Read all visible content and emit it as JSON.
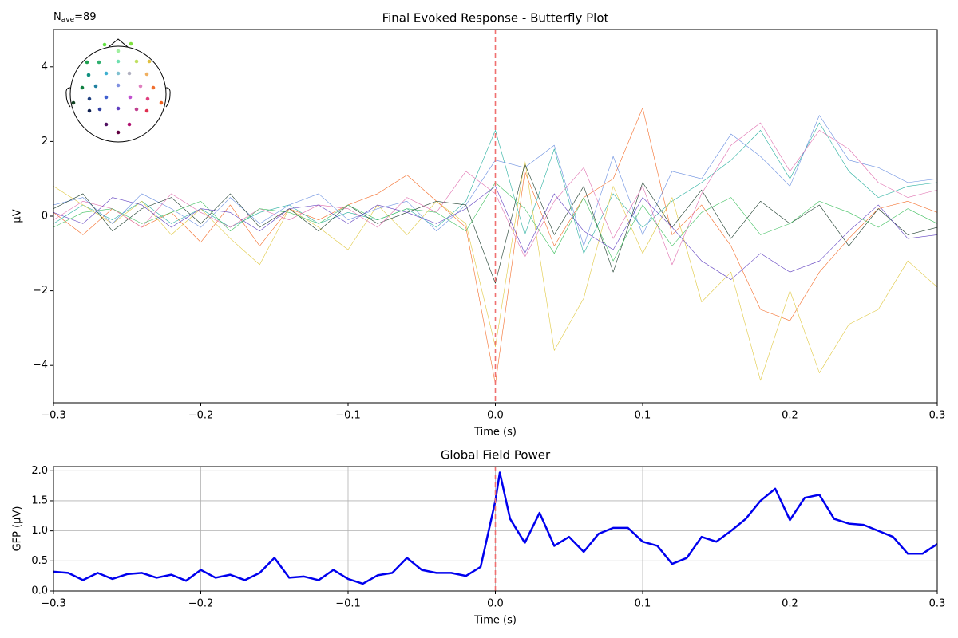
{
  "chart_data": [
    {
      "type": "butterfly",
      "title": "Final Evoked Response - Butterfly Plot",
      "nave": {
        "prefix": "N",
        "sub": "ave",
        "suffix": "=89"
      },
      "x_label": "Time (s)",
      "y_label": "µV",
      "xlim": [
        -0.3,
        0.3
      ],
      "ylim": [
        -5,
        5
      ],
      "xticks": [
        {
          "value": -0.3,
          "label": "−0.3"
        },
        {
          "value": -0.2,
          "label": "−0.2"
        },
        {
          "value": -0.1,
          "label": "−0.1"
        },
        {
          "value": 0,
          "label": "0.0"
        },
        0.1,
        0.2,
        0.3
      ],
      "yticks": [
        {
          "value": -4,
          "label": "−4"
        },
        {
          "value": -2,
          "label": "−2"
        },
        0,
        2,
        4
      ],
      "grid": false,
      "vline": 0,
      "x": [
        -0.3,
        -0.28,
        -0.26,
        -0.24,
        -0.22,
        -0.2,
        -0.18,
        -0.16,
        -0.14,
        -0.12,
        -0.1,
        -0.08,
        -0.06,
        -0.04,
        -0.02,
        0,
        0.02,
        0.04,
        0.06,
        0.08,
        0.1,
        0.12,
        0.14,
        0.16,
        0.18,
        0.2,
        0.22,
        0.24,
        0.26,
        0.28,
        0.3
      ],
      "series": [
        {
          "color": "#f46d2a",
          "values": [
            0.1,
            -0.5,
            0.2,
            -0.3,
            0.1,
            -0.7,
            0.3,
            -0.8,
            0.2,
            -0.1,
            0.3,
            0.6,
            1.1,
            0.4,
            -0.3,
            -4.5,
            1.2,
            -0.8,
            0.5,
            1.0,
            2.9,
            -0.5,
            0.3,
            -0.8,
            -2.5,
            -2.8,
            -1.5,
            -0.6,
            0.2,
            0.4,
            0.1
          ]
        },
        {
          "color": "#2ab0a0",
          "values": [
            -0.2,
            0.3,
            -0.1,
            0.4,
            -0.2,
            0.2,
            -0.3,
            0.1,
            0.3,
            -0.2,
            0.1,
            -0.1,
            0.2,
            -0.3,
            0.4,
            2.3,
            -0.5,
            1.8,
            -1.0,
            0.6,
            -0.3,
            0.4,
            0.9,
            1.5,
            2.3,
            1.0,
            2.5,
            1.2,
            0.5,
            0.8,
            0.9
          ]
        },
        {
          "color": "#e0c840",
          "values": [
            0.8,
            0.3,
            -0.2,
            0.4,
            -0.5,
            0.2,
            -0.6,
            -1.3,
            0.2,
            -0.3,
            -0.9,
            0.3,
            -0.5,
            0.4,
            -0.2,
            -3.5,
            1.5,
            -3.6,
            -2.2,
            0.8,
            -1.0,
            0.5,
            -2.3,
            -1.5,
            -4.4,
            -2.0,
            -4.2,
            -2.9,
            -2.5,
            -1.2,
            -1.9
          ]
        },
        {
          "color": "#6a8fe0",
          "values": [
            0.3,
            0.5,
            -0.2,
            0.6,
            0.2,
            -0.3,
            0.5,
            -0.2,
            0.3,
            0.6,
            -0.1,
            0.2,
            0.4,
            -0.4,
            0.3,
            1.5,
            1.3,
            1.9,
            -0.8,
            1.6,
            -0.5,
            1.2,
            1.0,
            2.2,
            1.6,
            0.8,
            2.7,
            1.5,
            1.3,
            0.9,
            1.0
          ]
        },
        {
          "color": "#1a3a2a",
          "values": [
            0.2,
            0.6,
            -0.4,
            0.2,
            0.5,
            -0.2,
            0.6,
            -0.3,
            0.2,
            -0.4,
            0.3,
            -0.2,
            0.1,
            0.4,
            0.3,
            -1.8,
            1.4,
            -0.5,
            0.8,
            -1.5,
            0.9,
            -0.3,
            0.7,
            -0.6,
            0.4,
            -0.2,
            0.3,
            -0.8,
            0.2,
            -0.5,
            -0.3
          ]
        },
        {
          "color": "#e070b0",
          "values": [
            -0.1,
            0.4,
            0.2,
            -0.3,
            0.6,
            0.1,
            -0.3,
            0.2,
            -0.1,
            0.3,
            0.2,
            -0.3,
            0.5,
            0.1,
            1.2,
            0.6,
            -1.1,
            0.4,
            1.3,
            -0.6,
            0.8,
            -1.3,
            0.6,
            1.9,
            2.5,
            1.2,
            2.3,
            1.8,
            0.9,
            0.5,
            0.7
          ]
        },
        {
          "color": "#40c060",
          "values": [
            -0.3,
            0.1,
            0.2,
            -0.2,
            0.1,
            0.4,
            -0.4,
            0.2,
            0.1,
            -0.2,
            0.3,
            -0.1,
            0.2,
            0.1,
            -0.4,
            0.9,
            0.2,
            -1.0,
            0.5,
            -1.2,
            0.3,
            -0.8,
            0.1,
            0.5,
            -0.5,
            -0.2,
            0.4,
            0.1,
            -0.3,
            0.2,
            -0.2
          ]
        },
        {
          "color": "#6040c0",
          "values": [
            0.1,
            -0.2,
            0.5,
            0.3,
            -0.3,
            0.2,
            0.1,
            -0.4,
            0.2,
            0.3,
            -0.2,
            0.3,
            0.1,
            -0.2,
            0.2,
            0.8,
            -1.0,
            0.6,
            -0.4,
            -0.9,
            0.5,
            -0.3,
            -1.2,
            -1.7,
            -1.0,
            -1.5,
            -1.2,
            -0.4,
            0.3,
            -0.6,
            -0.5
          ]
        }
      ]
    },
    {
      "type": "line",
      "title": "Global Field Power",
      "x_label": "Time (s)",
      "y_label": "GFP (µV)",
      "xlim": [
        -0.3,
        0.3
      ],
      "ylim": [
        0,
        2.07
      ],
      "xticks": [
        {
          "value": -0.3,
          "label": "−0.3"
        },
        {
          "value": -0.2,
          "label": "−0.2"
        },
        {
          "value": -0.1,
          "label": "−0.1"
        },
        {
          "value": 0,
          "label": "0.0"
        },
        0.1,
        0.2,
        0.3
      ],
      "yticks": [
        {
          "value": 0,
          "label": "0.0"
        },
        0.5,
        {
          "value": 1,
          "label": "1.0"
        },
        1.5,
        {
          "value": 2,
          "label": "2.0"
        }
      ],
      "grid": true,
      "vline": 0,
      "x": [
        -0.3,
        -0.29,
        -0.28,
        -0.27,
        -0.26,
        -0.25,
        -0.24,
        -0.23,
        -0.22,
        -0.21,
        -0.2,
        -0.19,
        -0.18,
        -0.17,
        -0.16,
        -0.15,
        -0.14,
        -0.13,
        -0.12,
        -0.11,
        -0.1,
        -0.09,
        -0.08,
        -0.07,
        -0.06,
        -0.05,
        -0.04,
        -0.03,
        -0.02,
        -0.01,
        0,
        0.003,
        0.01,
        0.02,
        0.03,
        0.04,
        0.05,
        0.06,
        0.07,
        0.08,
        0.09,
        0.1,
        0.11,
        0.12,
        0.13,
        0.14,
        0.15,
        0.16,
        0.17,
        0.18,
        0.19,
        0.2,
        0.21,
        0.22,
        0.23,
        0.24,
        0.25,
        0.26,
        0.27,
        0.28,
        0.29,
        0.3
      ],
      "series": [
        {
          "color": "#0000ee",
          "values": [
            0.32,
            0.3,
            0.18,
            0.3,
            0.2,
            0.28,
            0.3,
            0.22,
            0.27,
            0.17,
            0.35,
            0.22,
            0.27,
            0.18,
            0.3,
            0.55,
            0.22,
            0.24,
            0.18,
            0.35,
            0.2,
            0.12,
            0.26,
            0.3,
            0.55,
            0.35,
            0.3,
            0.3,
            0.25,
            0.4,
            1.5,
            1.97,
            1.2,
            0.8,
            1.3,
            0.75,
            0.9,
            0.65,
            0.95,
            1.05,
            1.05,
            0.82,
            0.75,
            0.45,
            0.55,
            0.9,
            0.82,
            1.0,
            1.2,
            1.5,
            1.7,
            1.18,
            1.55,
            1.6,
            1.2,
            1.12,
            1.1,
            1.0,
            0.9,
            0.62,
            0.62,
            0.78
          ]
        }
      ]
    }
  ]
}
